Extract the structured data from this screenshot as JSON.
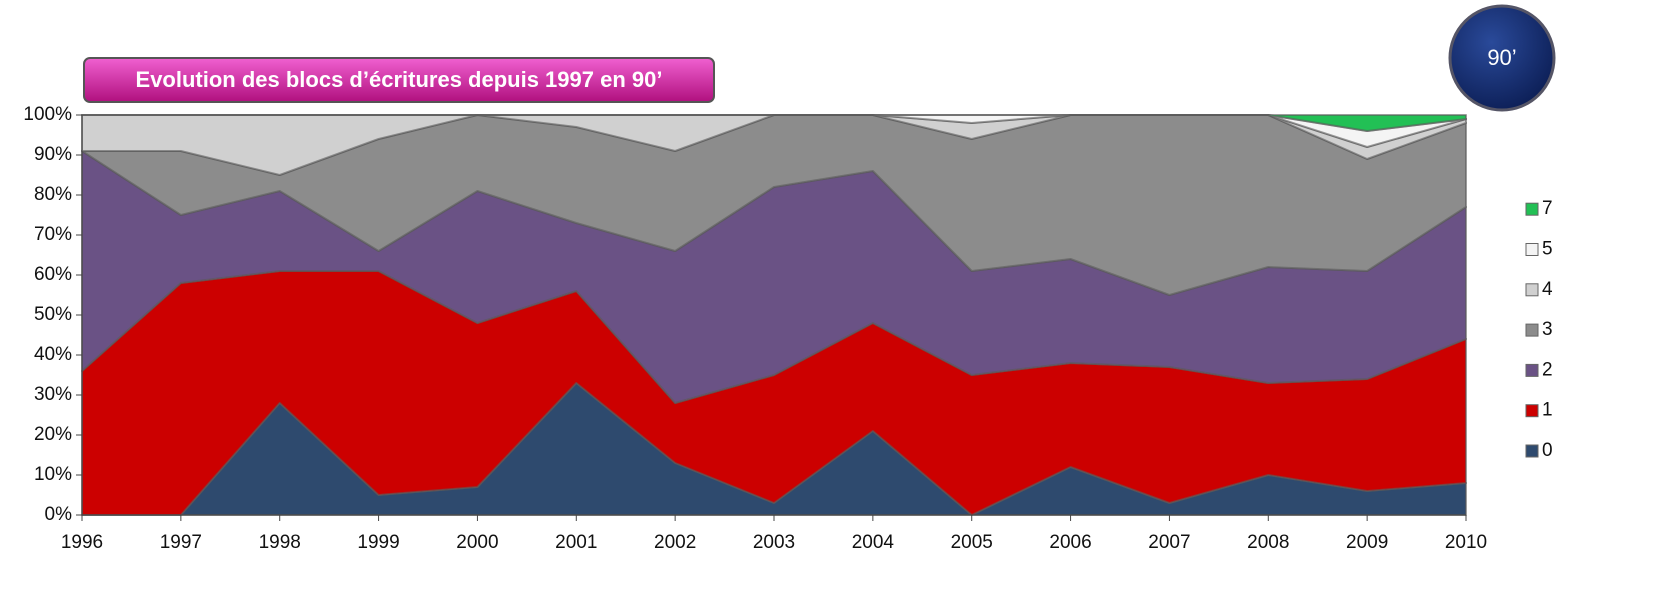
{
  "chart_data": {
    "type": "stacked_area",
    "title": "Evolution des blocs d’écritures depuis 1997 en 90’",
    "badge": "90’",
    "x": [
      1996,
      1997,
      1998,
      1999,
      2000,
      2001,
      2002,
      2003,
      2004,
      2005,
      2006,
      2007,
      2008,
      2009,
      2010
    ],
    "xlim": [
      1996,
      2010
    ],
    "ylim": [
      0,
      100
    ],
    "yticks": [
      {
        "value": 0,
        "label": "0%"
      },
      {
        "value": 10,
        "label": "10%"
      },
      {
        "value": 20,
        "label": "20%"
      },
      {
        "value": 30,
        "label": "30%"
      },
      {
        "value": 40,
        "label": "40%"
      },
      {
        "value": 50,
        "label": "50%"
      },
      {
        "value": 60,
        "label": "60%"
      },
      {
        "value": 70,
        "label": "70%"
      },
      {
        "value": 80,
        "label": "80%"
      },
      {
        "value": 90,
        "label": "90%"
      },
      {
        "value": 100,
        "label": "100%"
      }
    ],
    "legend": "right",
    "series": [
      {
        "name": "0",
        "color": "#2e4a6e",
        "values": [
          0,
          0,
          28,
          5,
          7,
          33,
          13,
          3,
          21,
          0,
          12,
          3,
          10,
          6,
          8
        ]
      },
      {
        "name": "1",
        "color": "#cc0000",
        "values": [
          36,
          58,
          33,
          56,
          41,
          23,
          15,
          32,
          27,
          35,
          26,
          34,
          23,
          28,
          36
        ]
      },
      {
        "name": "2",
        "color": "#6a5285",
        "values": [
          55,
          17,
          20,
          5,
          33,
          17,
          38,
          47,
          38,
          26,
          26,
          18,
          29,
          27,
          33
        ]
      },
      {
        "name": "3",
        "color": "#8c8c8c",
        "values": [
          0,
          16,
          4,
          28,
          19,
          24,
          25,
          18,
          14,
          33,
          36,
          45,
          38,
          28,
          21
        ]
      },
      {
        "name": "4",
        "color": "#d0d0d0",
        "values": [
          9,
          9,
          15,
          6,
          0,
          3,
          9,
          0,
          0,
          4,
          0,
          0,
          0,
          3,
          1
        ]
      },
      {
        "name": "5",
        "color": "#f4f4f4",
        "values": [
          0,
          0,
          0,
          0,
          0,
          0,
          0,
          0,
          0,
          2,
          0,
          0,
          0,
          4,
          0
        ]
      },
      {
        "name": "7",
        "color": "#22c055",
        "values": [
          0,
          0,
          0,
          0,
          0,
          0,
          0,
          0,
          0,
          0,
          0,
          0,
          0,
          4,
          1
        ]
      }
    ]
  }
}
